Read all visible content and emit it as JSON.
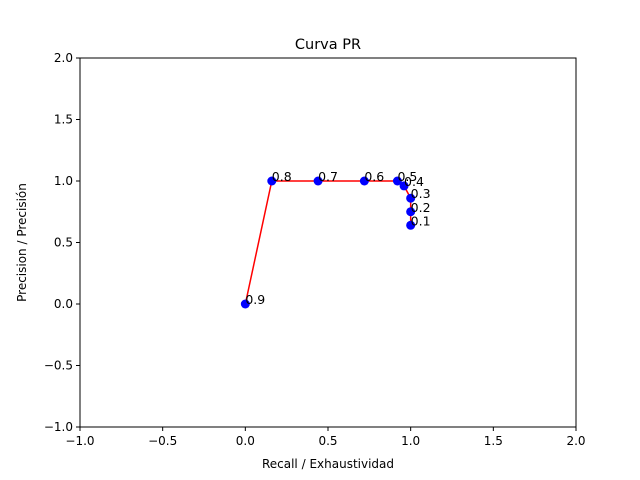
{
  "chart_data": {
    "type": "line",
    "title": "Curva PR",
    "xlabel": "Recall / Exhaustividad",
    "ylabel": "Precision / Precisión",
    "xlim": [
      -1.0,
      2.0
    ],
    "ylim": [
      -1.0,
      2.0
    ],
    "xticks": [
      "−1.0",
      "−0.5",
      "0.0",
      "0.5",
      "1.0",
      "1.5",
      "2.0"
    ],
    "yticks": [
      "−1.0",
      "−0.5",
      "0.0",
      "0.5",
      "1.0",
      "1.5",
      "2.0"
    ],
    "grid": false,
    "line_color": "#ff0000",
    "marker_color": "#0000ff",
    "points": [
      {
        "label": "0.1",
        "x": 1.0,
        "y": 0.64
      },
      {
        "label": "0.2",
        "x": 1.0,
        "y": 0.75
      },
      {
        "label": "0.3",
        "x": 1.0,
        "y": 0.86
      },
      {
        "label": "0.4",
        "x": 0.96,
        "y": 0.96
      },
      {
        "label": "0.5",
        "x": 0.92,
        "y": 1.0
      },
      {
        "label": "0.6",
        "x": 0.72,
        "y": 1.0
      },
      {
        "label": "0.7",
        "x": 0.44,
        "y": 1.0
      },
      {
        "label": "0.8",
        "x": 0.16,
        "y": 1.0
      },
      {
        "label": "0.9",
        "x": 0.0,
        "y": 0.0
      }
    ]
  }
}
